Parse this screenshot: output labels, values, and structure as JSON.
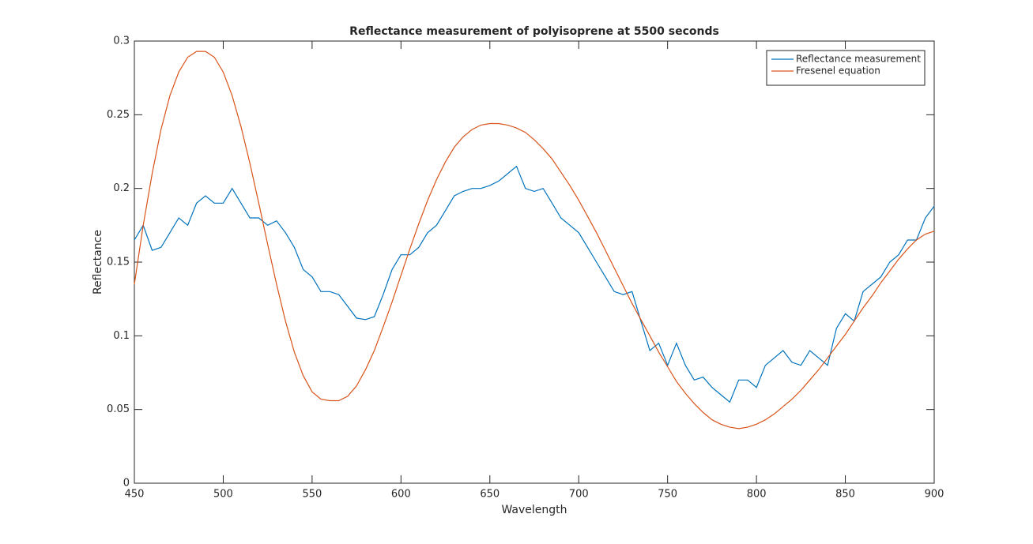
{
  "chart_data": {
    "type": "line",
    "title": "Reflectance measurement of polyisoprene at 5500 seconds",
    "x_label": "Wavelength",
    "y_label": "Reflectance",
    "x": [
      450,
      455,
      460,
      465,
      470,
      475,
      480,
      485,
      490,
      495,
      500,
      505,
      510,
      515,
      520,
      525,
      530,
      535,
      540,
      545,
      550,
      555,
      560,
      565,
      570,
      575,
      580,
      585,
      590,
      595,
      600,
      605,
      610,
      615,
      620,
      625,
      630,
      635,
      640,
      645,
      650,
      655,
      660,
      665,
      670,
      675,
      680,
      685,
      690,
      695,
      700,
      705,
      710,
      715,
      720,
      725,
      730,
      735,
      740,
      745,
      750,
      755,
      760,
      765,
      770,
      775,
      780,
      785,
      790,
      795,
      800,
      805,
      810,
      815,
      820,
      825,
      830,
      835,
      840,
      845,
      850,
      855,
      860,
      865,
      870,
      875,
      880,
      885,
      890,
      895,
      900
    ],
    "series": [
      {
        "name": "Reflectance measurement",
        "color": "#0072bd",
        "values": [
          0.165,
          0.175,
          0.158,
          0.16,
          0.17,
          0.18,
          0.175,
          0.19,
          0.195,
          0.19,
          0.19,
          0.2,
          0.19,
          0.18,
          0.18,
          0.175,
          0.178,
          0.17,
          0.16,
          0.145,
          0.14,
          0.13,
          0.13,
          0.128,
          0.12,
          0.112,
          0.111,
          0.113,
          0.128,
          0.145,
          0.155,
          0.155,
          0.16,
          0.17,
          0.175,
          0.185,
          0.195,
          0.198,
          0.2,
          0.2,
          0.202,
          0.205,
          0.21,
          0.215,
          0.2,
          0.198,
          0.2,
          0.19,
          0.18,
          0.175,
          0.17,
          0.16,
          0.15,
          0.14,
          0.13,
          0.128,
          0.13,
          0.11,
          0.09,
          0.095,
          0.08,
          0.095,
          0.08,
          0.07,
          0.072,
          0.065,
          0.06,
          0.055,
          0.07,
          0.07,
          0.065,
          0.08,
          0.085,
          0.09,
          0.082,
          0.08,
          0.09,
          0.085,
          0.08,
          0.105,
          0.115,
          0.11,
          0.13,
          0.135,
          0.14,
          0.15,
          0.155,
          0.165,
          0.165,
          0.18,
          0.188
        ]
      },
      {
        "name": "Fresenel equation",
        "color": "#d95319",
        "values": [
          0.135,
          0.175,
          0.21,
          0.24,
          0.263,
          0.279,
          0.289,
          0.293,
          0.293,
          0.289,
          0.279,
          0.263,
          0.242,
          0.217,
          0.19,
          0.162,
          0.135,
          0.11,
          0.089,
          0.073,
          0.062,
          0.057,
          0.056,
          0.056,
          0.059,
          0.066,
          0.077,
          0.09,
          0.106,
          0.123,
          0.141,
          0.159,
          0.176,
          0.192,
          0.206,
          0.218,
          0.228,
          0.235,
          0.24,
          0.243,
          0.244,
          0.244,
          0.243,
          0.241,
          0.238,
          0.233,
          0.227,
          0.22,
          0.211,
          0.202,
          0.192,
          0.181,
          0.17,
          0.158,
          0.146,
          0.134,
          0.122,
          0.111,
          0.1,
          0.089,
          0.079,
          0.069,
          0.061,
          0.054,
          0.048,
          0.043,
          0.04,
          0.038,
          0.037,
          0.038,
          0.04,
          0.043,
          0.047,
          0.052,
          0.057,
          0.063,
          0.07,
          0.077,
          0.085,
          0.093,
          0.101,
          0.11,
          0.119,
          0.127,
          0.136,
          0.144,
          0.152,
          0.159,
          0.165,
          0.169,
          0.171
        ]
      }
    ],
    "xlim": [
      450,
      900
    ],
    "xticks": [
      450,
      500,
      550,
      600,
      650,
      700,
      750,
      800,
      850,
      900
    ],
    "ylim": [
      0,
      0.3
    ],
    "yticks": [
      0,
      0.05,
      0.1,
      0.15,
      0.2,
      0.25,
      0.3
    ],
    "grid": false,
    "legend_position": "top-right"
  }
}
